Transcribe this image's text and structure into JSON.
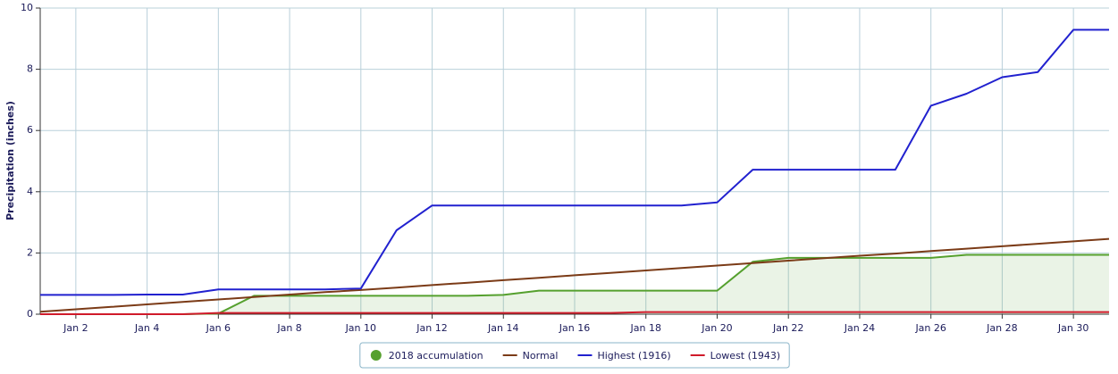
{
  "chart_data": {
    "type": "line",
    "y_label": "Precipitation (inches)",
    "categories": [
      null,
      "Jan 2",
      null,
      "Jan 4",
      null,
      "Jan 6",
      null,
      "Jan 8",
      null,
      "Jan 10",
      null,
      "Jan 12",
      null,
      "Jan 14",
      null,
      "Jan 16",
      null,
      "Jan 18",
      null,
      "Jan 20",
      null,
      "Jan 22",
      null,
      "Jan 24",
      null,
      "Jan 26",
      null,
      "Jan 28",
      null,
      "Jan 30",
      null
    ],
    "ylim": [
      0,
      10
    ],
    "yticks": [
      0,
      2,
      4,
      6,
      8,
      10
    ],
    "grid": true,
    "legend": "bottom",
    "series": [
      {
        "name": "2018 accumulation",
        "color": "#55a02e",
        "area": true,
        "values": [
          0,
          0,
          0,
          0,
          0,
          0.02,
          0.6,
          0.6,
          0.6,
          0.6,
          0.6,
          0.6,
          0.6,
          0.63,
          0.77,
          0.77,
          0.77,
          0.77,
          0.77,
          0.77,
          1.71,
          1.84,
          1.84,
          1.84,
          1.84,
          1.84,
          1.94,
          1.94,
          1.94,
          1.94,
          1.94
        ]
      },
      {
        "name": "Normal",
        "color": "#7b3b17",
        "values": [
          0.08,
          0.16,
          0.24,
          0.32,
          0.4,
          0.48,
          0.56,
          0.64,
          0.72,
          0.79,
          0.87,
          0.95,
          1.03,
          1.11,
          1.19,
          1.27,
          1.35,
          1.43,
          1.51,
          1.59,
          1.67,
          1.75,
          1.83,
          1.91,
          1.98,
          2.06,
          2.14,
          2.22,
          2.3,
          2.38,
          2.46
        ]
      },
      {
        "name": "Highest (1916)",
        "color": "#2121cf",
        "values": [
          0.63,
          0.63,
          0.63,
          0.64,
          0.64,
          0.81,
          0.81,
          0.81,
          0.81,
          0.84,
          2.74,
          3.55,
          3.55,
          3.55,
          3.55,
          3.55,
          3.55,
          3.55,
          3.55,
          3.65,
          4.72,
          4.72,
          4.72,
          4.72,
          4.72,
          6.81,
          7.2,
          7.74,
          7.91,
          9.29,
          9.29
        ]
      },
      {
        "name": "Lowest (1943)",
        "color": "#d01a2a",
        "values": [
          0,
          0,
          0,
          0,
          0,
          0.04,
          0.04,
          0.04,
          0.04,
          0.04,
          0.04,
          0.04,
          0.04,
          0.04,
          0.04,
          0.04,
          0.04,
          0.07,
          0.07,
          0.07,
          0.07,
          0.07,
          0.07,
          0.07,
          0.07,
          0.07,
          0.07,
          0.07,
          0.07,
          0.07,
          0.07
        ]
      }
    ]
  }
}
